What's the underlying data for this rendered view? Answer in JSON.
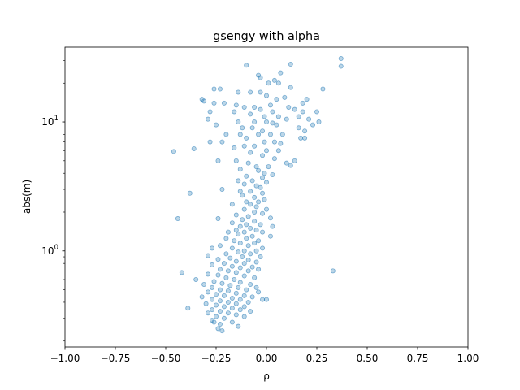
{
  "chart_data": {
    "type": "scatter",
    "title": "gsengy with alpha",
    "xlabel": "ρ",
    "ylabel": "abs(m)",
    "xlim": [
      -1.0,
      1.0
    ],
    "ylim": [
      0.18,
      38
    ],
    "yscale": "log",
    "grid": false,
    "marker_color": "#1f77b4",
    "marker_alpha": 0.3,
    "x_ticks": [
      {
        "value": -1.0,
        "label": "−1.00"
      },
      {
        "value": -0.75,
        "label": "−0.75"
      },
      {
        "value": -0.5,
        "label": "−0.50"
      },
      {
        "value": -0.25,
        "label": "−0.25"
      },
      {
        "value": 0.0,
        "label": "0.00"
      },
      {
        "value": 0.25,
        "label": "0.25"
      },
      {
        "value": 0.5,
        "label": "0.50"
      },
      {
        "value": 0.75,
        "label": "0.75"
      },
      {
        "value": 1.0,
        "label": "1.00"
      }
    ],
    "y_ticks": [
      {
        "value": 1,
        "base": "10",
        "exp": "0"
      },
      {
        "value": 10,
        "base": "10",
        "exp": "1"
      }
    ],
    "series": [
      {
        "points": [
          [
            0.37,
            31.0
          ],
          [
            0.37,
            27.0
          ],
          [
            0.12,
            28.0
          ],
          [
            -0.1,
            27.5
          ],
          [
            0.07,
            24.0
          ],
          [
            -0.04,
            23.0
          ],
          [
            0.04,
            21.0
          ],
          [
            -0.03,
            22.0
          ],
          [
            0.06,
            20.0
          ],
          [
            0.01,
            20.0
          ],
          [
            0.28,
            18.0
          ],
          [
            0.12,
            18.5
          ],
          [
            -0.26,
            18.0
          ],
          [
            -0.23,
            18.0
          ],
          [
            -0.14,
            17.0
          ],
          [
            -0.03,
            17.0
          ],
          [
            -0.08,
            17.0
          ],
          [
            0.0,
            16.0
          ],
          [
            0.05,
            15.0
          ],
          [
            0.09,
            15.5
          ],
          [
            0.2,
            15.0
          ],
          [
            0.18,
            14.0
          ],
          [
            -0.32,
            15.0
          ],
          [
            -0.31,
            14.5
          ],
          [
            -0.26,
            14.0
          ],
          [
            -0.21,
            14.0
          ],
          [
            -0.15,
            13.5
          ],
          [
            -0.11,
            13.0
          ],
          [
            -0.06,
            13.0
          ],
          [
            -0.03,
            12.5
          ],
          [
            0.02,
            13.5
          ],
          [
            0.03,
            12.0
          ],
          [
            0.11,
            13.0
          ],
          [
            0.14,
            12.5
          ],
          [
            0.16,
            11.0
          ],
          [
            0.18,
            12.0
          ],
          [
            0.25,
            12.0
          ],
          [
            -0.28,
            12.0
          ],
          [
            -0.16,
            12.0
          ],
          [
            -0.08,
            11.5
          ],
          [
            -0.01,
            11.0
          ],
          [
            0.06,
            11.0
          ],
          [
            0.1,
            10.5
          ],
          [
            0.21,
            10.5
          ],
          [
            0.26,
            10.0
          ],
          [
            0.23,
            9.5
          ],
          [
            -0.29,
            10.5
          ],
          [
            -0.25,
            9.5
          ],
          [
            -0.14,
            10.0
          ],
          [
            -0.06,
            10.0
          ],
          [
            0.0,
            10.0
          ],
          [
            0.03,
            9.8
          ],
          [
            0.05,
            9.5
          ],
          [
            0.16,
            9.0
          ],
          [
            0.19,
            8.5
          ],
          [
            -0.12,
            9.0
          ],
          [
            -0.07,
            9.0
          ],
          [
            -0.02,
            8.5
          ],
          [
            -0.04,
            8.0
          ],
          [
            0.02,
            8.0
          ],
          [
            0.08,
            8.0
          ],
          [
            -0.13,
            8.0
          ],
          [
            -0.2,
            8.0
          ],
          [
            0.17,
            7.5
          ],
          [
            0.19,
            7.5
          ],
          [
            -0.1,
            7.5
          ],
          [
            -0.01,
            7.0
          ],
          [
            0.04,
            7.0
          ],
          [
            0.07,
            6.8
          ],
          [
            -0.28,
            7.0
          ],
          [
            -0.22,
            7.0
          ],
          [
            -0.36,
            6.2
          ],
          [
            -0.46,
            5.9
          ],
          [
            -0.11,
            6.5
          ],
          [
            -0.16,
            6.3
          ],
          [
            -0.06,
            6.5
          ],
          [
            0.0,
            6.0
          ],
          [
            0.06,
            6.0
          ],
          [
            -0.08,
            5.8
          ],
          [
            -0.02,
            5.5
          ],
          [
            0.04,
            5.2
          ],
          [
            0.14,
            5.0
          ],
          [
            0.1,
            4.8
          ],
          [
            0.12,
            4.6
          ],
          [
            -0.24,
            5.0
          ],
          [
            -0.15,
            5.0
          ],
          [
            -0.09,
            4.8
          ],
          [
            -0.05,
            4.5
          ],
          [
            0.01,
            4.5
          ],
          [
            -0.13,
            4.3
          ],
          [
            -0.04,
            4.2
          ],
          [
            -0.01,
            4.0
          ],
          [
            0.03,
            3.9
          ],
          [
            -0.1,
            3.8
          ],
          [
            -0.02,
            3.7
          ],
          [
            -0.14,
            3.5
          ],
          [
            -0.07,
            3.5
          ],
          [
            0.0,
            3.4
          ],
          [
            -0.11,
            3.3
          ],
          [
            -0.05,
            3.2
          ],
          [
            -0.03,
            3.1
          ],
          [
            -0.22,
            3.0
          ],
          [
            -0.13,
            2.9
          ],
          [
            -0.08,
            2.9
          ],
          [
            -0.02,
            2.8
          ],
          [
            -0.38,
            2.8
          ],
          [
            -0.12,
            2.7
          ],
          [
            -0.06,
            2.6
          ],
          [
            -0.01,
            2.5
          ],
          [
            -0.1,
            2.4
          ],
          [
            -0.04,
            2.4
          ],
          [
            -0.17,
            2.3
          ],
          [
            -0.08,
            2.3
          ],
          [
            -0.05,
            2.2
          ],
          [
            -0.11,
            2.1
          ],
          [
            0.0,
            2.1
          ],
          [
            -0.06,
            2.0
          ],
          [
            -0.02,
            1.95
          ],
          [
            -0.15,
            1.9
          ],
          [
            -0.09,
            1.85
          ],
          [
            -0.44,
            1.78
          ],
          [
            -0.24,
            1.78
          ],
          [
            -0.12,
            1.75
          ],
          [
            0.02,
            1.8
          ],
          [
            -0.06,
            1.7
          ],
          [
            -0.17,
            1.65
          ],
          [
            -0.1,
            1.6
          ],
          [
            -0.03,
            1.6
          ],
          [
            0.03,
            1.55
          ],
          [
            -0.13,
            1.55
          ],
          [
            -0.08,
            1.5
          ],
          [
            -0.15,
            1.45
          ],
          [
            -0.05,
            1.45
          ],
          [
            -0.19,
            1.4
          ],
          [
            -0.11,
            1.4
          ],
          [
            -0.02,
            1.4
          ],
          [
            -0.14,
            1.35
          ],
          [
            -0.07,
            1.3
          ],
          [
            0.02,
            1.3
          ],
          [
            -0.2,
            1.25
          ],
          [
            -0.1,
            1.25
          ],
          [
            -0.04,
            1.2
          ],
          [
            -0.16,
            1.2
          ],
          [
            -0.13,
            1.15
          ],
          [
            -0.06,
            1.15
          ],
          [
            -0.23,
            1.1
          ],
          [
            -0.09,
            1.1
          ],
          [
            -0.02,
            1.05
          ],
          [
            -0.17,
            1.05
          ],
          [
            -0.11,
            1.0
          ],
          [
            -0.27,
            1.05
          ],
          [
            -0.05,
            1.0
          ],
          [
            -0.14,
            0.98
          ],
          [
            -0.2,
            0.95
          ],
          [
            -0.08,
            0.95
          ],
          [
            -0.29,
            0.92
          ],
          [
            -0.12,
            0.9
          ],
          [
            -0.03,
            0.9
          ],
          [
            -0.18,
            0.88
          ],
          [
            -0.24,
            0.86
          ],
          [
            -0.09,
            0.85
          ],
          [
            -0.15,
            0.83
          ],
          [
            -0.05,
            0.82
          ],
          [
            -0.21,
            0.8
          ],
          [
            -0.11,
            0.8
          ],
          [
            -0.27,
            0.78
          ],
          [
            -0.17,
            0.76
          ],
          [
            -0.07,
            0.75
          ],
          [
            -0.13,
            0.74
          ],
          [
            -0.23,
            0.72
          ],
          [
            -0.19,
            0.7
          ],
          [
            -0.09,
            0.7
          ],
          [
            -0.04,
            0.72
          ],
          [
            -0.42,
            0.68
          ],
          [
            -0.15,
            0.68
          ],
          [
            -0.29,
            0.66
          ],
          [
            -0.24,
            0.65
          ],
          [
            0.33,
            0.7
          ],
          [
            -0.11,
            0.64
          ],
          [
            -0.2,
            0.62
          ],
          [
            -0.35,
            0.6
          ],
          [
            -0.06,
            0.62
          ],
          [
            -0.16,
            0.6
          ],
          [
            -0.26,
            0.58
          ],
          [
            -0.13,
            0.57
          ],
          [
            -0.22,
            0.56
          ],
          [
            -0.31,
            0.55
          ],
          [
            -0.08,
            0.55
          ],
          [
            -0.18,
            0.54
          ],
          [
            -0.27,
            0.52
          ],
          [
            -0.14,
            0.52
          ],
          [
            -0.1,
            0.5
          ],
          [
            -0.23,
            0.5
          ],
          [
            -0.19,
            0.49
          ],
          [
            -0.04,
            0.48
          ],
          [
            -0.29,
            0.48
          ],
          [
            -0.15,
            0.47
          ],
          [
            -0.25,
            0.46
          ],
          [
            -0.11,
            0.45
          ],
          [
            -0.21,
            0.45
          ],
          [
            -0.32,
            0.44
          ],
          [
            -0.07,
            0.44
          ],
          [
            -0.17,
            0.43
          ],
          [
            -0.27,
            0.42
          ],
          [
            -0.13,
            0.42
          ],
          [
            -0.23,
            0.41
          ],
          [
            -0.02,
            0.42
          ],
          [
            -0.19,
            0.4
          ],
          [
            -0.09,
            0.4
          ],
          [
            -0.3,
            0.39
          ],
          [
            -0.15,
            0.39
          ],
          [
            -0.25,
            0.38
          ],
          [
            -0.11,
            0.37
          ],
          [
            -0.21,
            0.37
          ],
          [
            -0.39,
            0.36
          ],
          [
            -0.17,
            0.36
          ],
          [
            -0.27,
            0.35
          ],
          [
            -0.13,
            0.35
          ],
          [
            -0.23,
            0.34
          ],
          [
            -0.08,
            0.34
          ],
          [
            -0.19,
            0.33
          ],
          [
            -0.29,
            0.33
          ],
          [
            -0.15,
            0.32
          ],
          [
            -0.25,
            0.31
          ],
          [
            -0.11,
            0.31
          ],
          [
            -0.21,
            0.3
          ],
          [
            -0.27,
            0.29
          ],
          [
            -0.26,
            0.28
          ],
          [
            -0.17,
            0.28
          ],
          [
            -0.23,
            0.27
          ],
          [
            -0.14,
            0.26
          ],
          [
            -0.24,
            0.25
          ],
          [
            -0.22,
            0.24
          ],
          [
            0.0,
            0.42
          ],
          [
            -0.05,
            0.52
          ]
        ]
      }
    ]
  }
}
